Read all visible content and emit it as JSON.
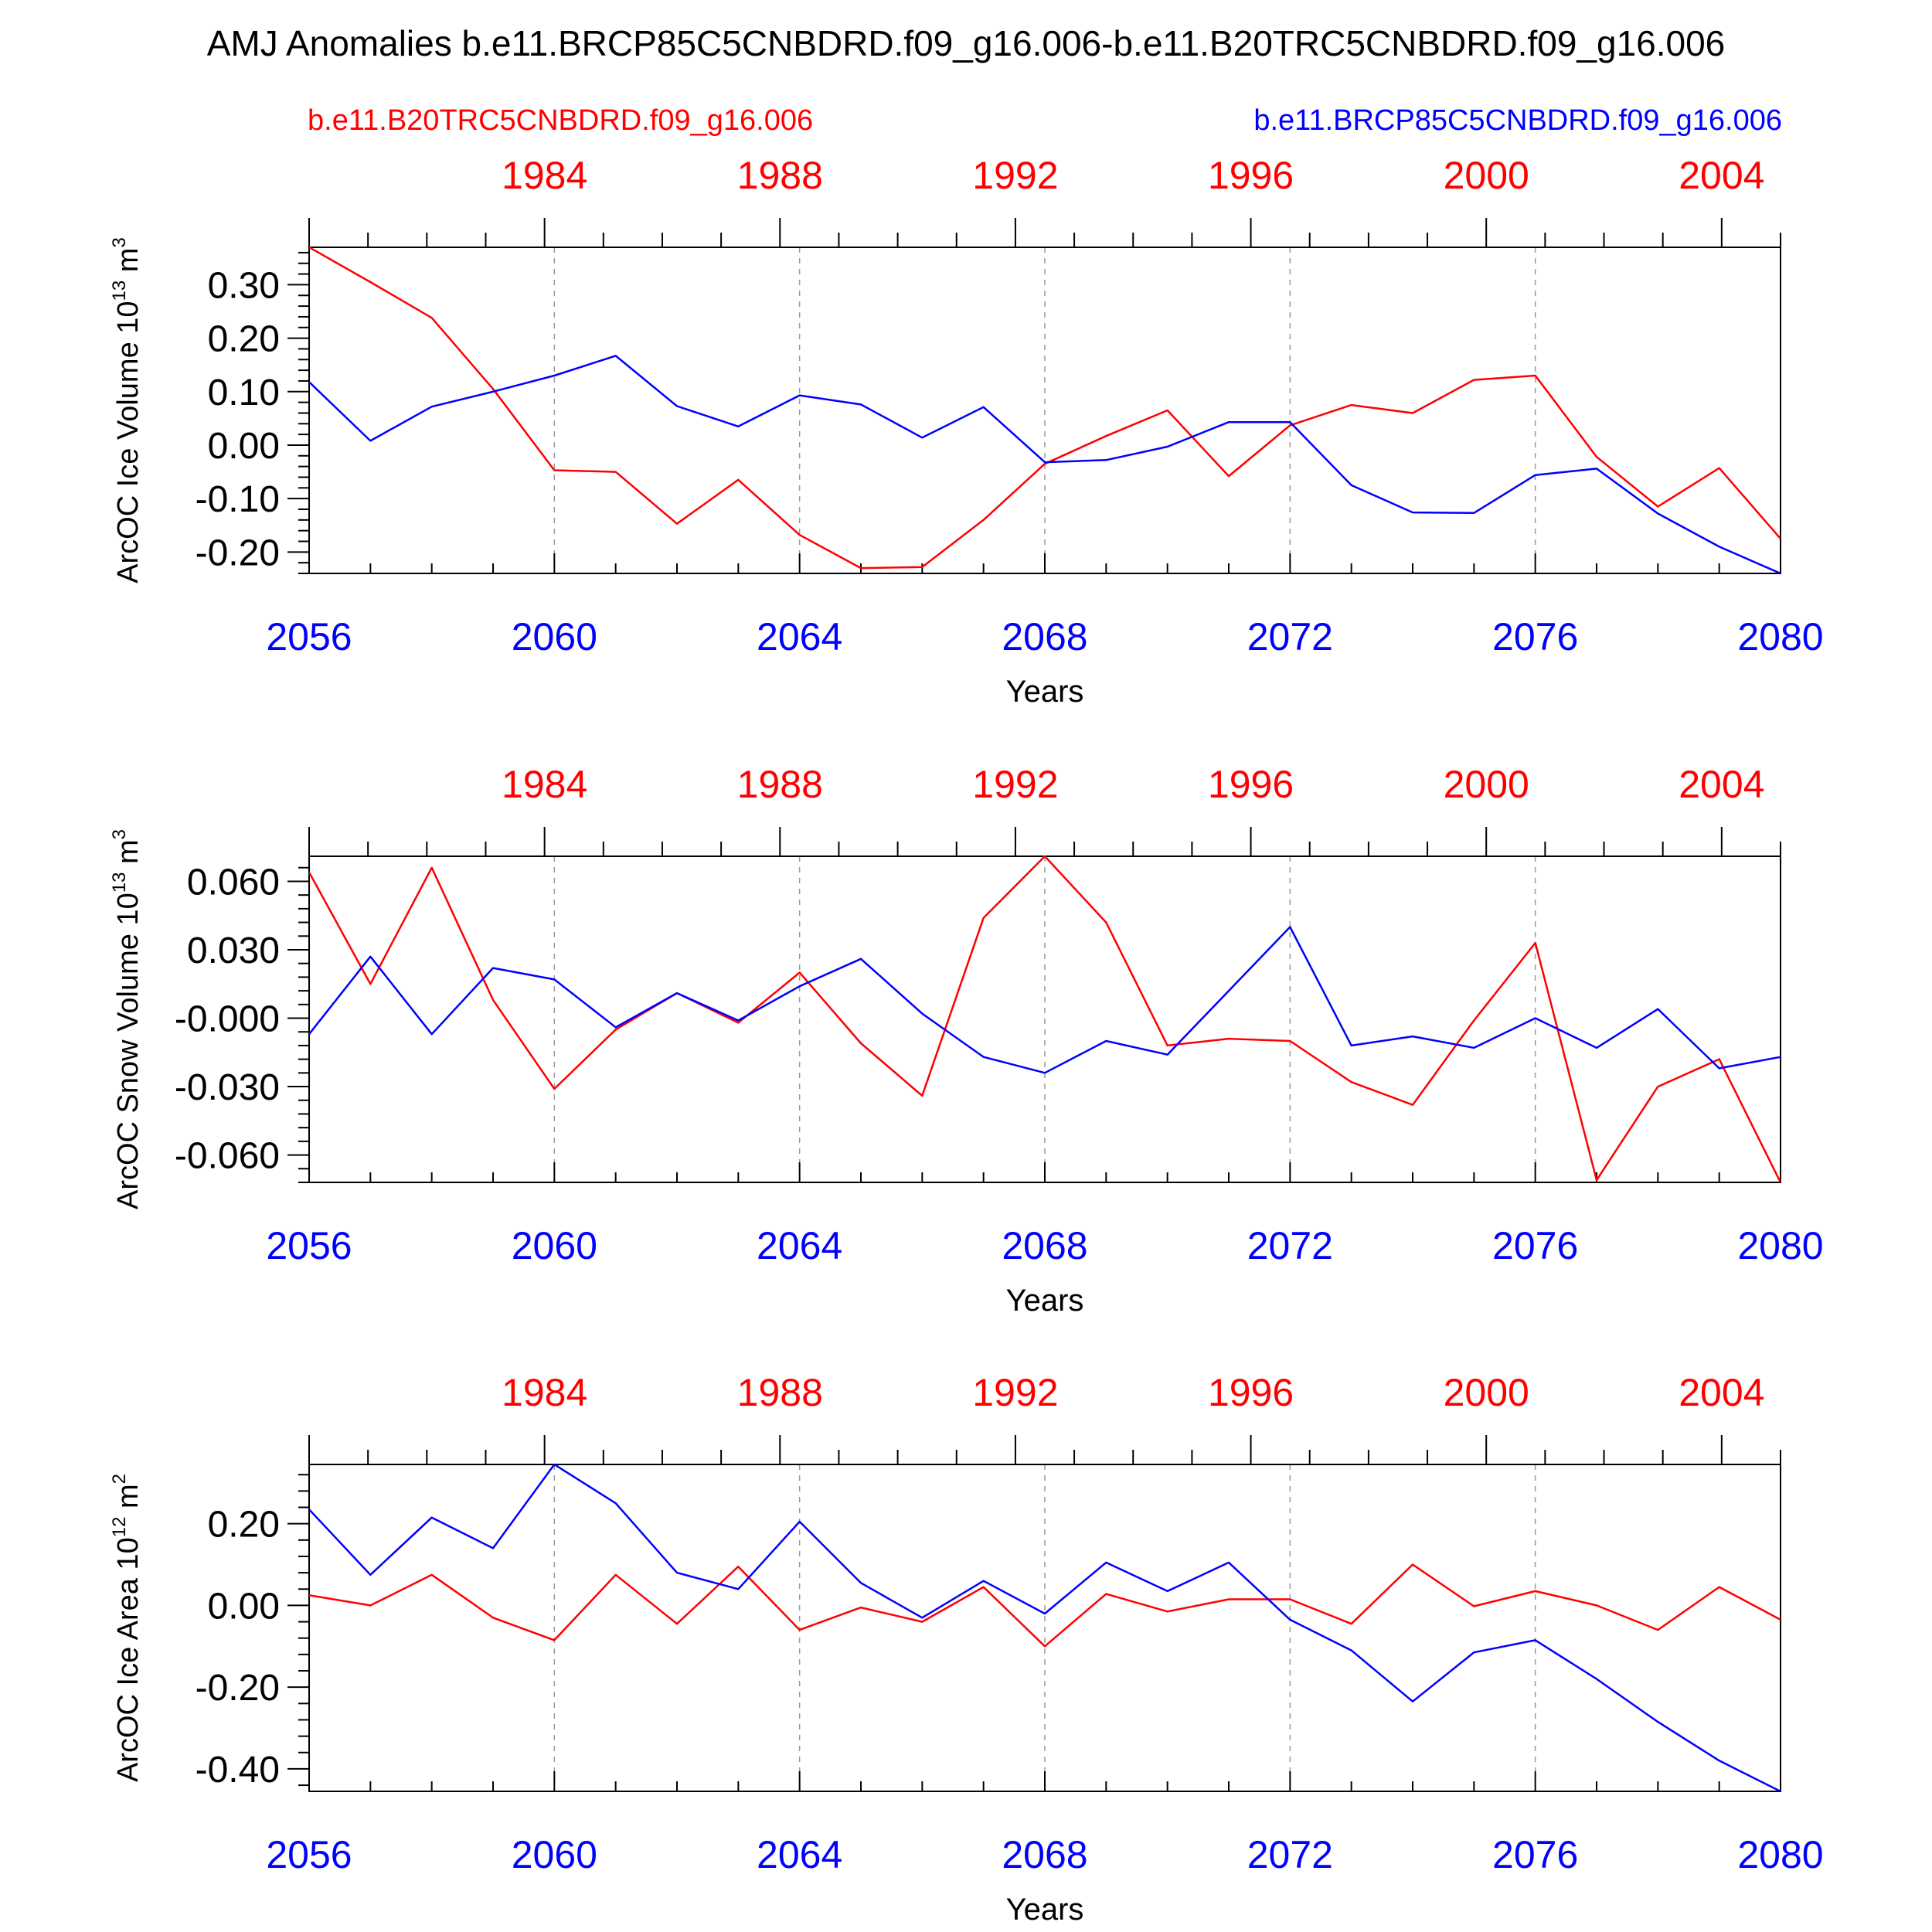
{
  "title": "AMJ Anomalies b.e11.BRCP85C5CNBDRD.f09_g16.006-b.e11.B20TRC5CNBDRD.f09_g16.006",
  "legend": {
    "historical": "b.e11.B20TRC5CNBDRD.f09_g16.006",
    "future": "b.e11.BRCP85C5CNBDRD.f09_g16.006"
  },
  "colors": {
    "historical": "#ff0000",
    "future": "#0000ff",
    "axis": "#000000",
    "grid": "#9a9a9a"
  },
  "xlabel": "Years",
  "bottom_axis": {
    "range": [
      2056,
      2080
    ],
    "ticks": [
      "2056",
      "2060",
      "2064",
      "2068",
      "2072",
      "2076",
      "2080"
    ]
  },
  "top_axis": {
    "range": [
      1980,
      2005
    ],
    "ticks": [
      "1984",
      "1988",
      "1992",
      "1996",
      "2000",
      "2004"
    ]
  },
  "chart_data": [
    {
      "type": "line",
      "ylabel": "ArcOC Ice Volume 10",
      "ylabel_exp": "13",
      "ylabel_unit": " m",
      "ylabel_unit_exp": "3",
      "ylim": [
        -0.24,
        0.37
      ],
      "yticks": [
        -0.2,
        -0.1,
        0.0,
        0.1,
        0.2,
        0.3
      ],
      "yticklabels": [
        "-0.20",
        "-0.10",
        "0.00",
        "0.10",
        "0.20",
        "0.30"
      ],
      "x": [
        2056,
        2057,
        2058,
        2059,
        2060,
        2061,
        2062,
        2063,
        2064,
        2065,
        2066,
        2067,
        2068,
        2069,
        2070,
        2071,
        2072,
        2073,
        2074,
        2075,
        2076,
        2077,
        2078,
        2079,
        2080
      ],
      "series": [
        {
          "name": "b.e11.B20TRC5CNBDRD.f09_g16.006",
          "color": "#ff0000",
          "values": [
            0.37,
            0.305,
            0.238,
            0.105,
            -0.047,
            -0.05,
            -0.147,
            -0.065,
            -0.168,
            -0.23,
            -0.228,
            -0.14,
            -0.035,
            0.017,
            0.065,
            -0.058,
            0.037,
            0.075,
            0.06,
            0.122,
            0.13,
            -0.022,
            -0.115,
            -0.043,
            -0.175
          ]
        },
        {
          "name": "b.e11.BRCP85C5CNBDRD.f09_g16.006",
          "color": "#0000ff",
          "values": [
            0.118,
            0.008,
            0.072,
            0.1,
            0.13,
            0.167,
            0.073,
            0.035,
            0.093,
            0.076,
            0.014,
            0.071,
            -0.032,
            -0.028,
            -0.003,
            0.043,
            0.043,
            -0.075,
            -0.126,
            -0.127,
            -0.056,
            -0.044,
            -0.128,
            -0.19,
            -0.24
          ]
        }
      ]
    },
    {
      "type": "line",
      "ylabel": "ArcOC Snow Volume 10",
      "ylabel_exp": "13",
      "ylabel_unit": " m",
      "ylabel_unit_exp": "3",
      "ylim": [
        -0.072,
        0.071
      ],
      "yticks": [
        -0.06,
        -0.03,
        0.0,
        0.03,
        0.06
      ],
      "yticklabels": [
        "-0.060",
        "-0.030",
        "-0.000",
        "0.030",
        "0.060"
      ],
      "x": [
        2056,
        2057,
        2058,
        2059,
        2060,
        2061,
        2062,
        2063,
        2064,
        2065,
        2066,
        2067,
        2068,
        2069,
        2070,
        2071,
        2072,
        2073,
        2074,
        2075,
        2076,
        2077,
        2078,
        2079,
        2080
      ],
      "series": [
        {
          "name": "b.e11.B20TRC5CNBDRD.f09_g16.006",
          "color": "#ff0000",
          "values": [
            0.064,
            0.015,
            0.066,
            0.008,
            -0.031,
            -0.005,
            0.011,
            -0.002,
            0.02,
            -0.011,
            -0.034,
            0.044,
            0.071,
            0.042,
            -0.012,
            -0.009,
            -0.01,
            -0.028,
            -0.038,
            -0.001,
            0.033,
            -0.071,
            -0.03,
            -0.018,
            -0.072
          ]
        },
        {
          "name": "b.e11.BRCP85C5CNBDRD.f09_g16.006",
          "color": "#0000ff",
          "values": [
            -0.007,
            0.027,
            -0.007,
            0.022,
            0.017,
            -0.004,
            0.011,
            -0.001,
            0.014,
            0.026,
            0.002,
            -0.017,
            -0.024,
            -0.01,
            -0.016,
            0.012,
            0.04,
            -0.012,
            -0.008,
            -0.013,
            0.0,
            -0.013,
            0.004,
            -0.022,
            -0.017
          ]
        }
      ]
    },
    {
      "type": "line",
      "ylabel": "ArcOC Ice Area 10",
      "ylabel_exp": "12",
      "ylabel_unit": " m",
      "ylabel_unit_exp": "2",
      "ylim": [
        -0.455,
        0.345
      ],
      "yticks": [
        -0.4,
        -0.2,
        0.0,
        0.2
      ],
      "yticklabels": [
        "-0.40",
        "-0.20",
        "0.00",
        "0.20"
      ],
      "x": [
        2056,
        2057,
        2058,
        2059,
        2060,
        2061,
        2062,
        2063,
        2064,
        2065,
        2066,
        2067,
        2068,
        2069,
        2070,
        2071,
        2072,
        2073,
        2074,
        2075,
        2076,
        2077,
        2078,
        2079,
        2080
      ],
      "series": [
        {
          "name": "b.e11.B20TRC5CNBDRD.f09_g16.006",
          "color": "#ff0000",
          "values": [
            0.025,
            0.0,
            0.075,
            -0.03,
            -0.085,
            0.075,
            -0.045,
            0.095,
            -0.06,
            -0.005,
            -0.04,
            0.045,
            -0.1,
            0.028,
            -0.015,
            0.015,
            0.015,
            -0.045,
            0.1,
            -0.002,
            0.035,
            0.0,
            -0.06,
            0.045,
            -0.035
          ]
        },
        {
          "name": "b.e11.BRCP85C5CNBDRD.f09_g16.006",
          "color": "#0000ff",
          "values": [
            0.235,
            0.075,
            0.215,
            0.14,
            0.345,
            0.25,
            0.08,
            0.04,
            0.205,
            0.055,
            -0.03,
            0.06,
            -0.02,
            0.105,
            0.035,
            0.105,
            -0.035,
            -0.11,
            -0.235,
            -0.115,
            -0.085,
            -0.18,
            -0.285,
            -0.38,
            -0.455
          ]
        }
      ]
    }
  ]
}
